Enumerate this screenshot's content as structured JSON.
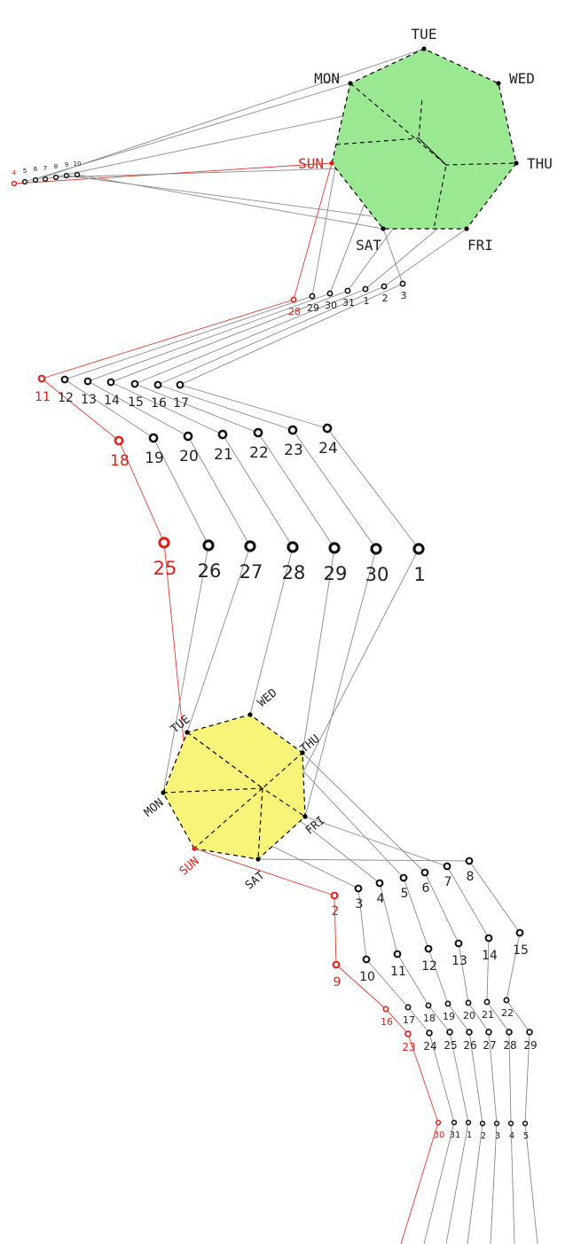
{
  "weekdays": [
    "SUN",
    "MON",
    "TUE",
    "WED",
    "THU",
    "FRI",
    "SAT"
  ],
  "colors": {
    "top_heptagon": "#9be893",
    "bottom_heptagon": "#f8f47a",
    "sunday": "#e0201a",
    "link": "#8a8a8a"
  },
  "rows": [
    {
      "id": "row-a",
      "dates": [
        "4",
        "5",
        "6",
        "7",
        "8",
        "9",
        "10"
      ]
    },
    {
      "id": "row-b",
      "dates": [
        "28",
        "29",
        "30",
        "31",
        "1",
        "2",
        "3"
      ]
    },
    {
      "id": "row-c",
      "dates": [
        "11",
        "12",
        "13",
        "14",
        "15",
        "16",
        "17"
      ]
    },
    {
      "id": "row-d",
      "dates": [
        "18",
        "19",
        "20",
        "21",
        "22",
        "23",
        "24"
      ]
    },
    {
      "id": "row-e",
      "dates": [
        "25",
        "26",
        "27",
        "28",
        "29",
        "30",
        "1"
      ]
    },
    {
      "id": "row-f",
      "dates": [
        "2",
        "3",
        "4",
        "5",
        "6",
        "7",
        "8"
      ]
    },
    {
      "id": "row-g",
      "dates": [
        "9",
        "10",
        "11",
        "12",
        "13",
        "14",
        "15"
      ]
    },
    {
      "id": "row-h",
      "dates": [
        "16",
        "17",
        "18",
        "19",
        "20",
        "21",
        "22"
      ]
    },
    {
      "id": "row-i",
      "dates": [
        "23",
        "24",
        "25",
        "26",
        "27",
        "28",
        "29"
      ]
    },
    {
      "id": "row-j",
      "dates": [
        "30",
        "31",
        "1",
        "2",
        "3",
        "4",
        "5"
      ]
    }
  ]
}
